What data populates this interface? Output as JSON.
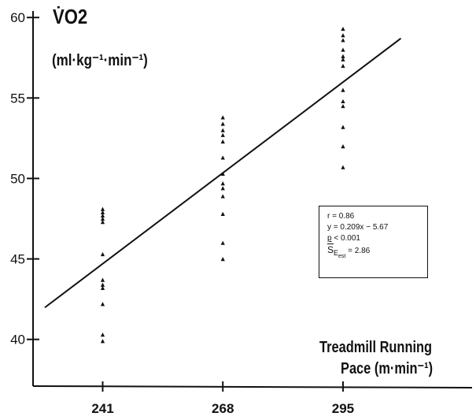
{
  "chart_data": {
    "type": "scatter",
    "title": "",
    "ylabel": "V̇O2",
    "ylabel_units": "(ml·kg⁻¹·min⁻¹)",
    "xlabel_line1": "Treadmill Running",
    "xlabel_line2": "Pace (m·min⁻¹)",
    "xlim": [
      225,
      324
    ],
    "ylim": [
      37,
      60.5
    ],
    "x_ticks": [
      241,
      268,
      295
    ],
    "y_ticks": [
      40,
      45,
      50,
      55,
      60
    ],
    "marker": "triangle",
    "grid": false,
    "series": [
      {
        "values": [
          {
            "x": 241,
            "y": 39.9
          },
          {
            "x": 241,
            "y": 40.3
          },
          {
            "x": 241,
            "y": 42.2
          },
          {
            "x": 241,
            "y": 43.2
          },
          {
            "x": 241,
            "y": 43.4
          },
          {
            "x": 241,
            "y": 43.7
          },
          {
            "x": 241,
            "y": 45.3
          },
          {
            "x": 241,
            "y": 47.3
          },
          {
            "x": 241,
            "y": 47.5
          },
          {
            "x": 241,
            "y": 47.7
          },
          {
            "x": 241,
            "y": 47.9
          },
          {
            "x": 241,
            "y": 48.1
          },
          {
            "x": 268,
            "y": 45.0
          },
          {
            "x": 268,
            "y": 46.0
          },
          {
            "x": 268,
            "y": 47.8
          },
          {
            "x": 268,
            "y": 48.9
          },
          {
            "x": 268,
            "y": 49.4
          },
          {
            "x": 268,
            "y": 49.7
          },
          {
            "x": 268,
            "y": 50.3
          },
          {
            "x": 268,
            "y": 51.3
          },
          {
            "x": 268,
            "y": 52.3
          },
          {
            "x": 268,
            "y": 52.7
          },
          {
            "x": 268,
            "y": 53.0
          },
          {
            "x": 268,
            "y": 53.4
          },
          {
            "x": 268,
            "y": 53.8
          },
          {
            "x": 295,
            "y": 50.7
          },
          {
            "x": 295,
            "y": 52.0
          },
          {
            "x": 295,
            "y": 53.2
          },
          {
            "x": 295,
            "y": 54.5
          },
          {
            "x": 295,
            "y": 54.8
          },
          {
            "x": 295,
            "y": 55.5
          },
          {
            "x": 295,
            "y": 57.0
          },
          {
            "x": 295,
            "y": 57.4
          },
          {
            "x": 295,
            "y": 57.6
          },
          {
            "x": 295,
            "y": 58.0
          },
          {
            "x": 295,
            "y": 58.6
          },
          {
            "x": 295,
            "y": 58.9
          },
          {
            "x": 295,
            "y": 59.3
          }
        ]
      }
    ],
    "regression_line": {
      "x_start": 228,
      "x_end": 308
    },
    "annotations": {
      "r": "r = 0.86",
      "equation": "y = 0.209x − 5.67",
      "p_prefix": "p",
      "p_suffix": " < 0.001",
      "see_prefix": "S",
      "see_sub": "E",
      "see_sub2": "est",
      "see_value": " = 2.86"
    }
  }
}
